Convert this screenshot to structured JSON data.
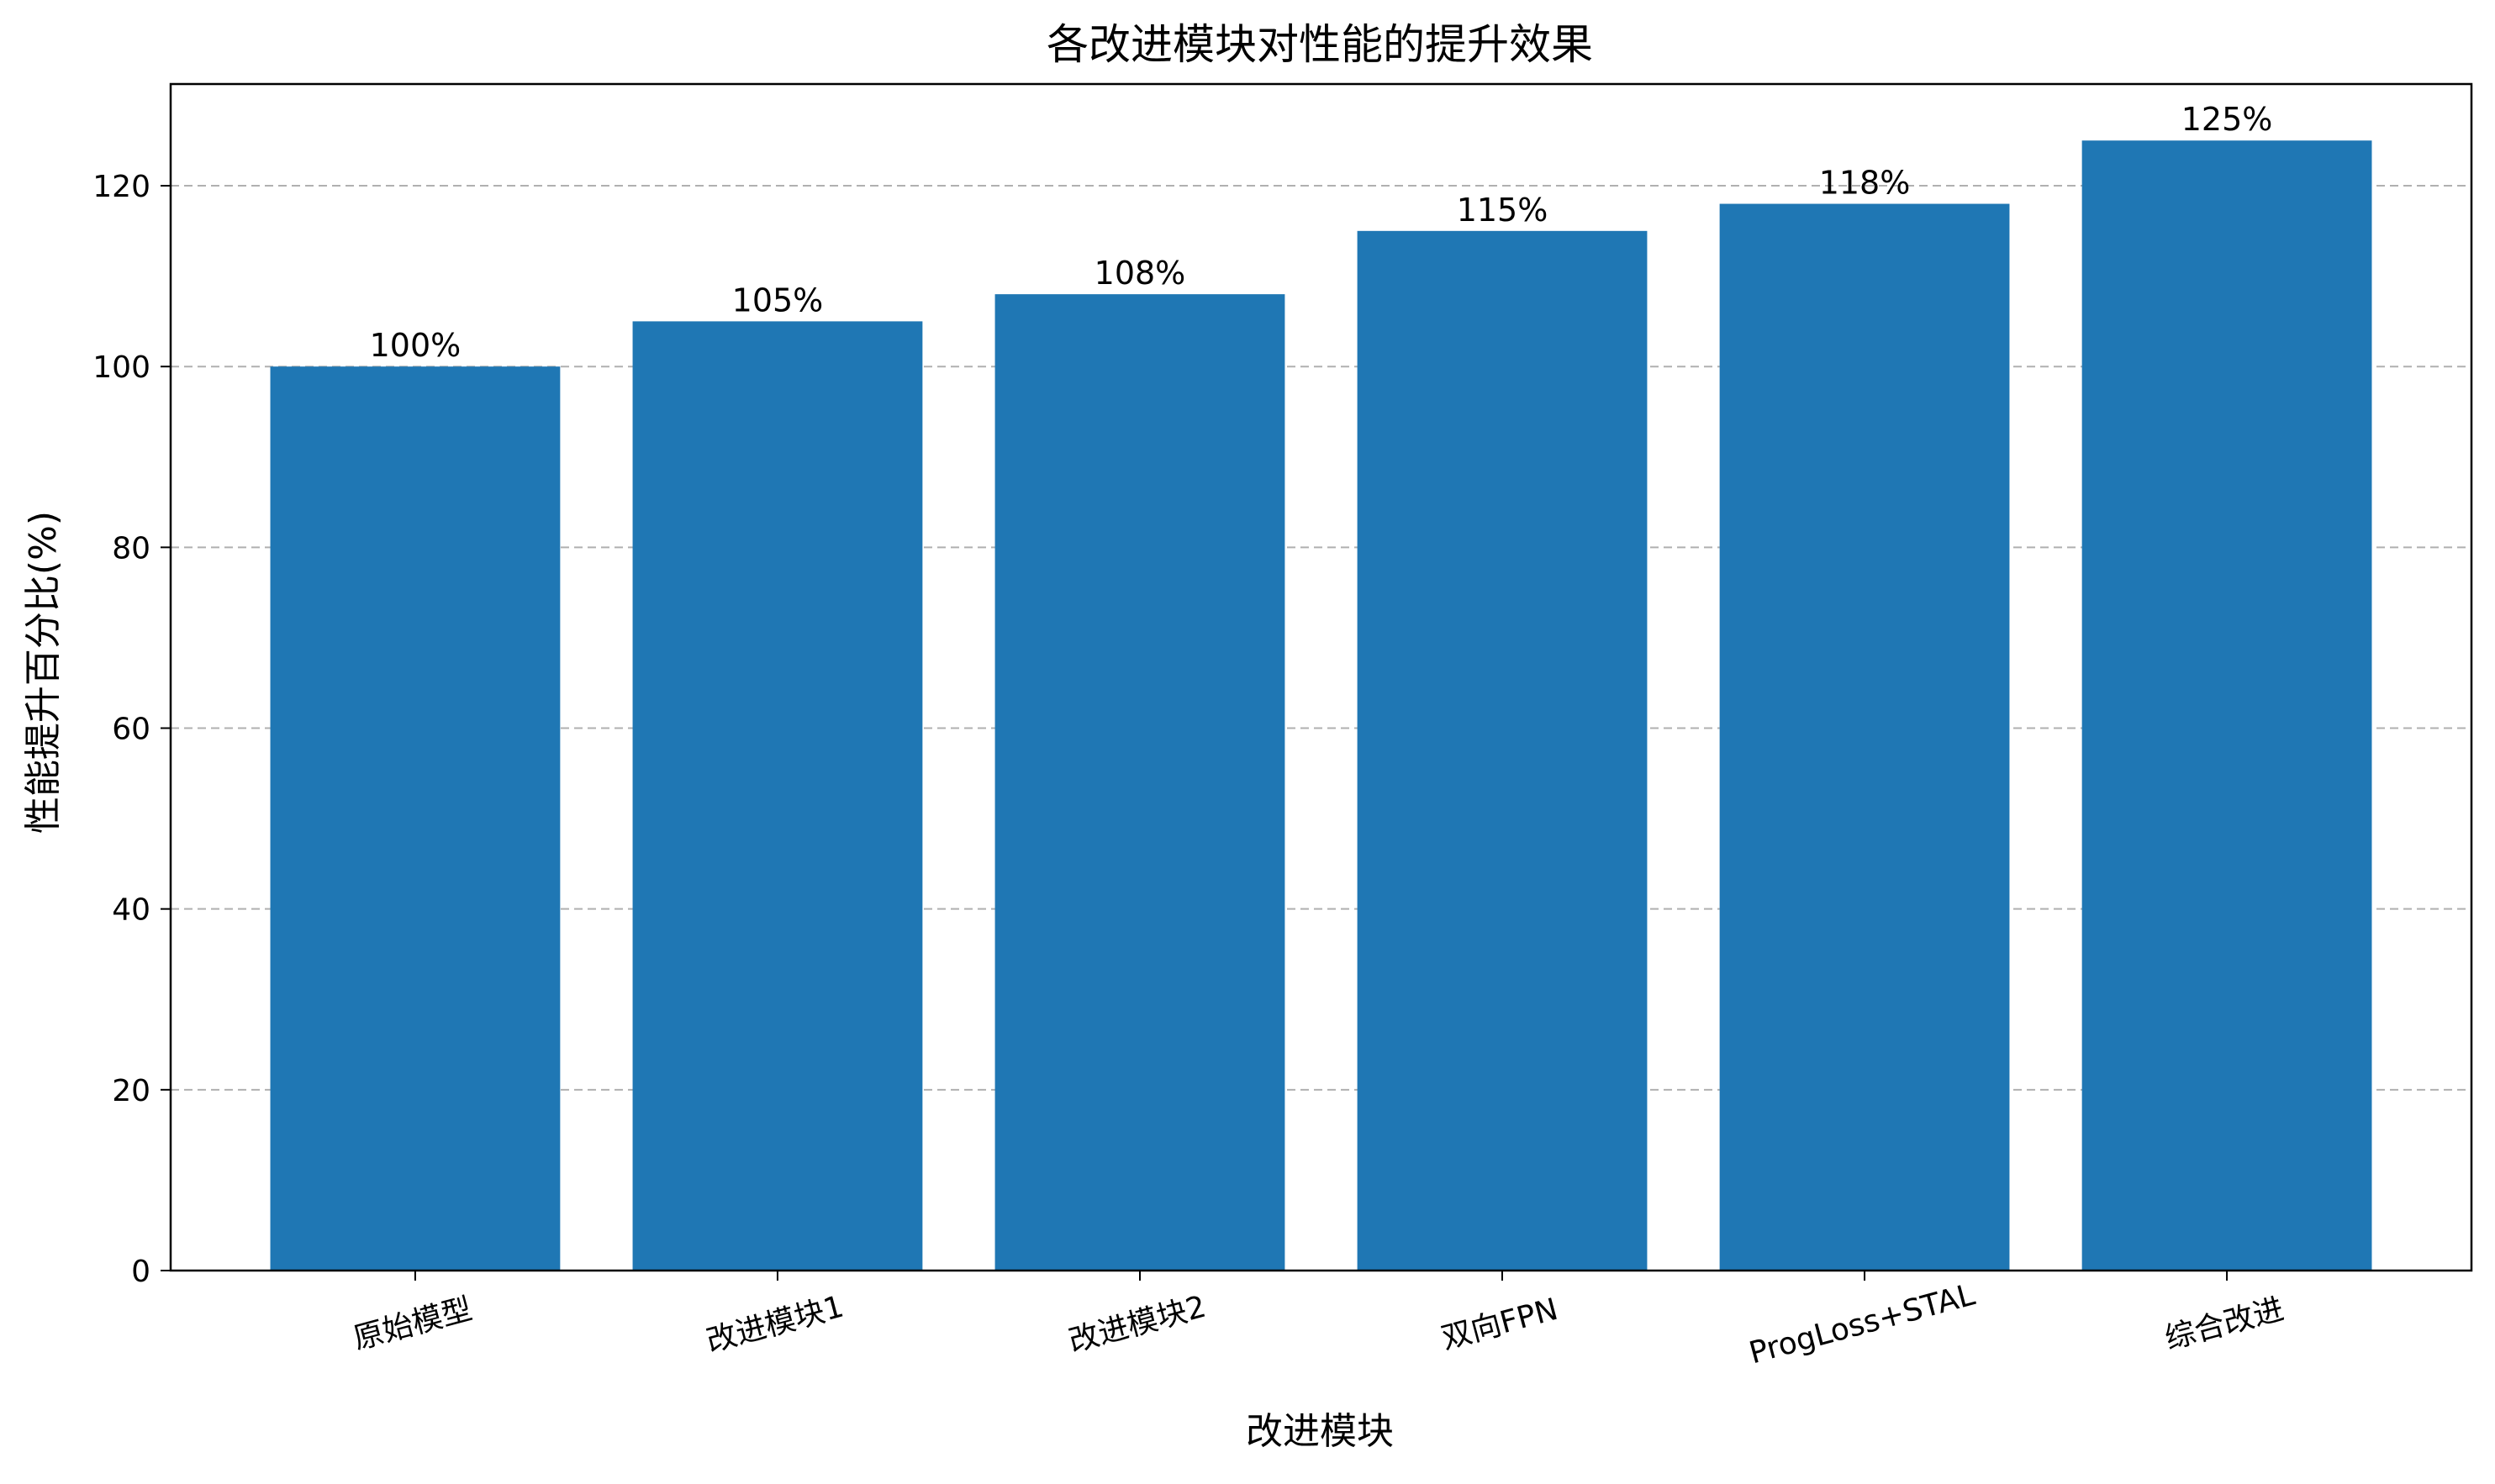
{
  "chart_data": {
    "type": "bar",
    "title": "各改进模块对性能的提升效果",
    "xlabel": "改进模块",
    "ylabel": "性能提升百分比(%)",
    "categories": [
      "原始模型",
      "改进模块1",
      "改进模块2",
      "双向FPN",
      "ProgLoss+STAL",
      "综合改进"
    ],
    "values": [
      100,
      105,
      108,
      115,
      118,
      125
    ],
    "value_labels": [
      "100%",
      "105%",
      "108%",
      "115%",
      "118%",
      "125%"
    ],
    "ylim": [
      0,
      131.25
    ],
    "yticks": [
      0,
      20,
      40,
      60,
      80,
      100,
      120
    ],
    "grid": "y-dashed",
    "bar_color": "#1f77b4",
    "grid_color": "#b0b0b0"
  }
}
